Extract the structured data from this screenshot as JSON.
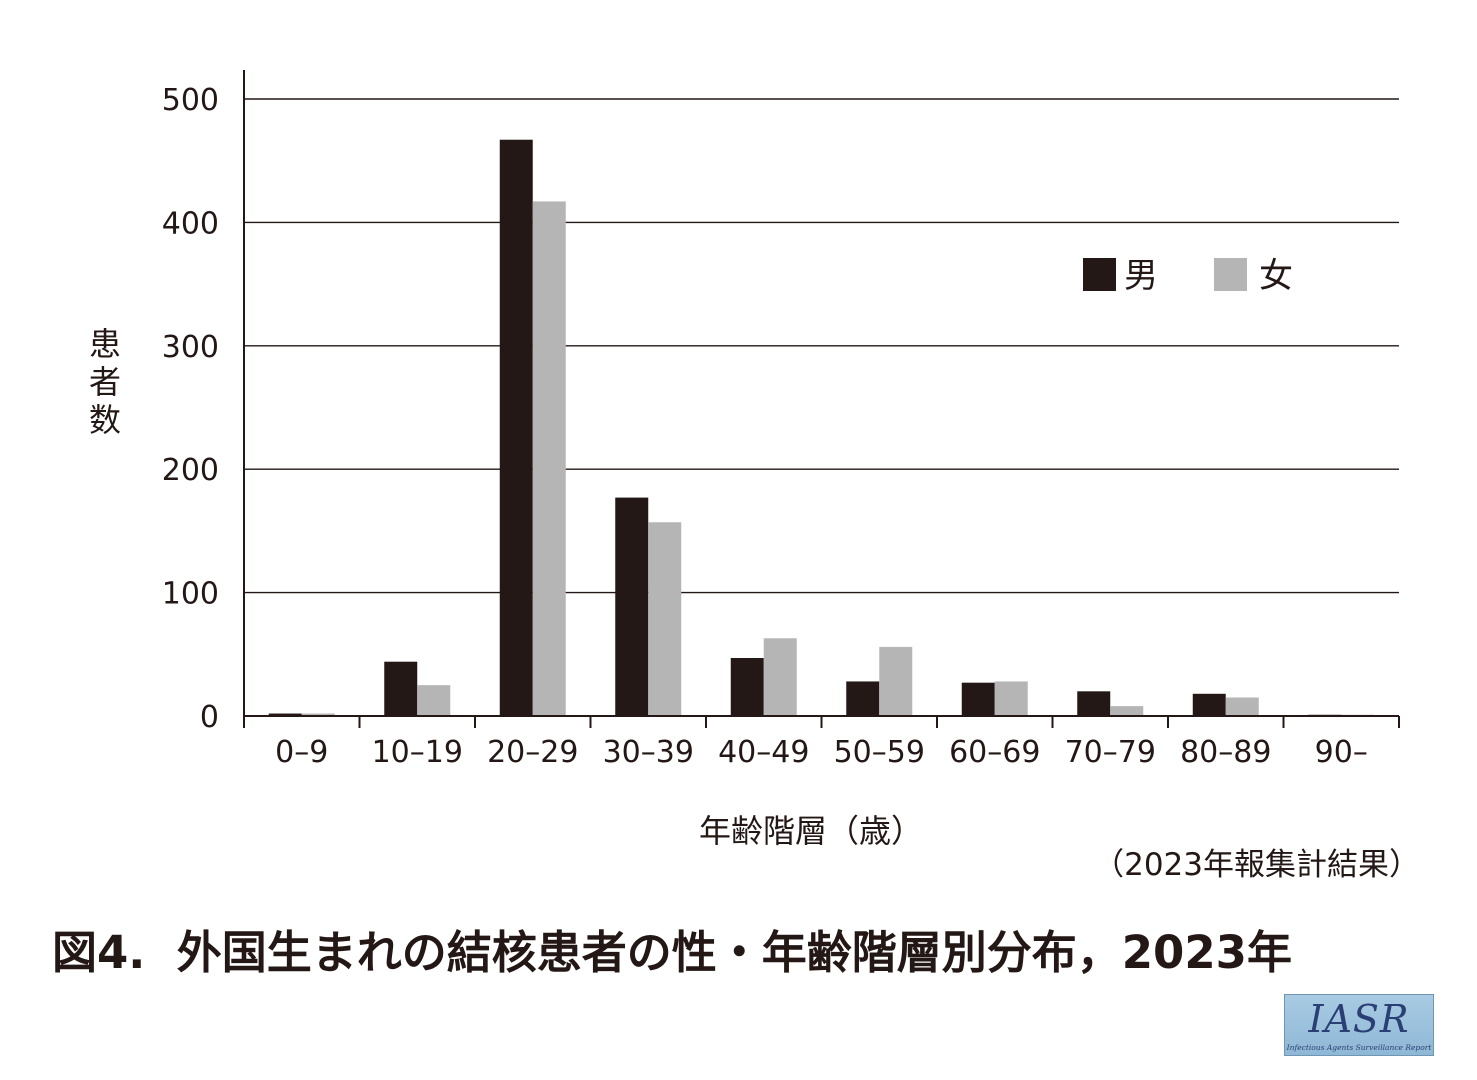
{
  "chart_data": {
    "type": "bar",
    "categories": [
      "0–9",
      "10–19",
      "20–29",
      "30–39",
      "40–49",
      "50–59",
      "60–69",
      "70–79",
      "80–89",
      "90–"
    ],
    "series": [
      {
        "name": "男",
        "color": "#231815",
        "values": [
          2,
          44,
          467,
          177,
          47,
          28,
          27,
          20,
          18,
          1
        ]
      },
      {
        "name": "女",
        "color": "#b5b5b6",
        "values": [
          2,
          25,
          417,
          157,
          63,
          56,
          28,
          8,
          15,
          1
        ]
      }
    ],
    "yticks": [
      "0",
      "100",
      "200",
      "300",
      "400",
      "500"
    ],
    "ylim": [
      0,
      500
    ],
    "grid": true,
    "legend_position": "top-right",
    "ylabel": "患者数",
    "xlabel": "年齢階層（歳）",
    "note": "（2023年報集計結果）",
    "title": "図4.  外国生まれの結核患者の性・年齢階層別分布，2023年"
  },
  "logo": {
    "name": "IASR",
    "subtitle": "Infectious Agents Surveillance Report"
  }
}
